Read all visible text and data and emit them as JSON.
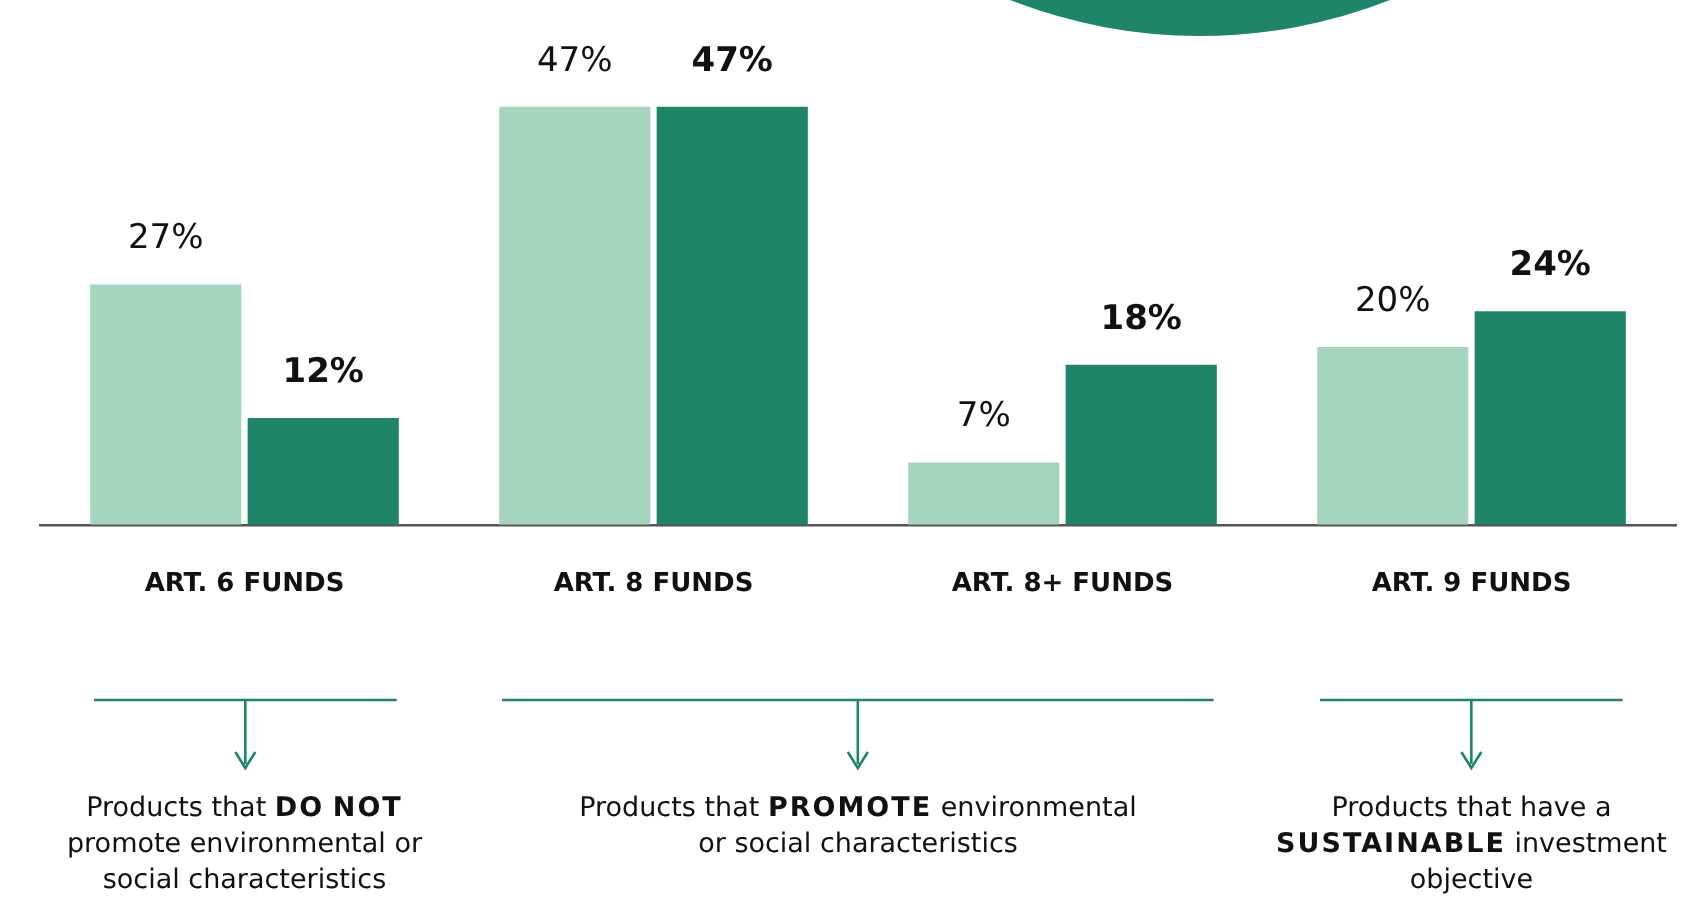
{
  "chart_data": {
    "type": "bar",
    "categories": [
      "ART. 6 FUNDS",
      "ART. 8 FUNDS",
      "ART. 8+ FUNDS",
      "ART. 9 FUNDS"
    ],
    "series": [
      {
        "color": "#a5d6bd",
        "values": [
          27,
          47,
          7,
          20
        ],
        "value_labels": [
          "27%",
          "47%",
          "7%",
          "20%"
        ]
      },
      {
        "color": "#1e8569",
        "values": [
          12,
          47,
          18,
          24
        ],
        "value_labels": [
          "12%",
          "47%",
          "18%",
          "24%"
        ]
      }
    ],
    "grid": false,
    "legend": false,
    "tick_labels": "x",
    "annotations": [
      "Products that DO NOT promote environmental or social characteristics",
      "Products that PROMOTE environmental or social characteristics",
      "Products that have a SUSTAINABLE investment objective"
    ]
  }
}
